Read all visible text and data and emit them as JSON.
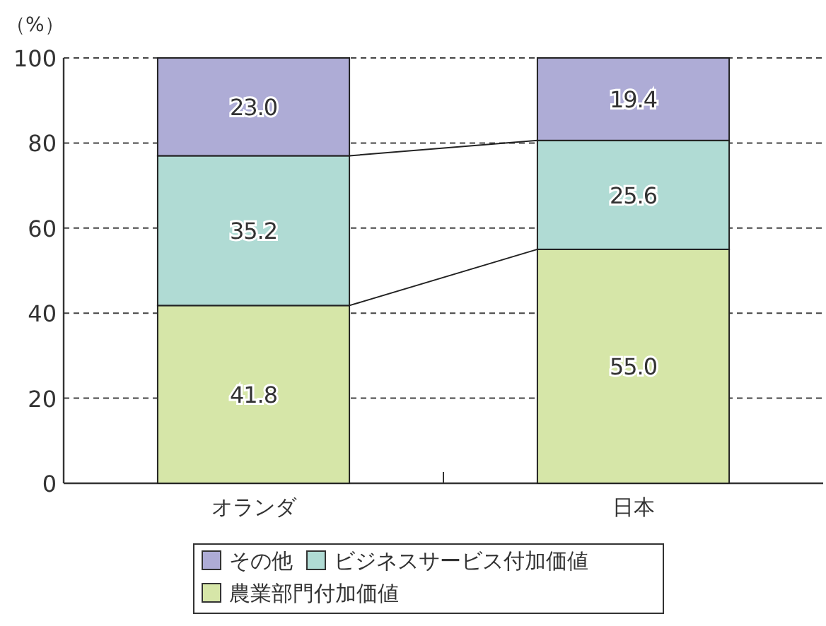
{
  "chart_data": {
    "type": "bar",
    "stacked": true,
    "ylabel": "（%）",
    "categories": [
      "オランダ",
      "日本"
    ],
    "series": [
      {
        "name": "農業部門付加価値",
        "color": "#d6e6a8",
        "values": [
          41.8,
          55.0
        ],
        "value_labels": [
          "41.8",
          "55.0"
        ]
      },
      {
        "name": "ビジネスサービス付加価値",
        "color": "#b0dbd4",
        "values": [
          35.2,
          25.6
        ],
        "value_labels": [
          "35.2",
          "25.6"
        ]
      },
      {
        "name": "その他",
        "color": "#aeacd6",
        "values": [
          23.0,
          19.4
        ],
        "value_labels": [
          "23.0",
          "19.4"
        ]
      }
    ],
    "ylim": [
      0,
      100
    ],
    "yticks": [
      0,
      20,
      40,
      60,
      80,
      100
    ],
    "grid": "y",
    "legend": "bottom"
  }
}
